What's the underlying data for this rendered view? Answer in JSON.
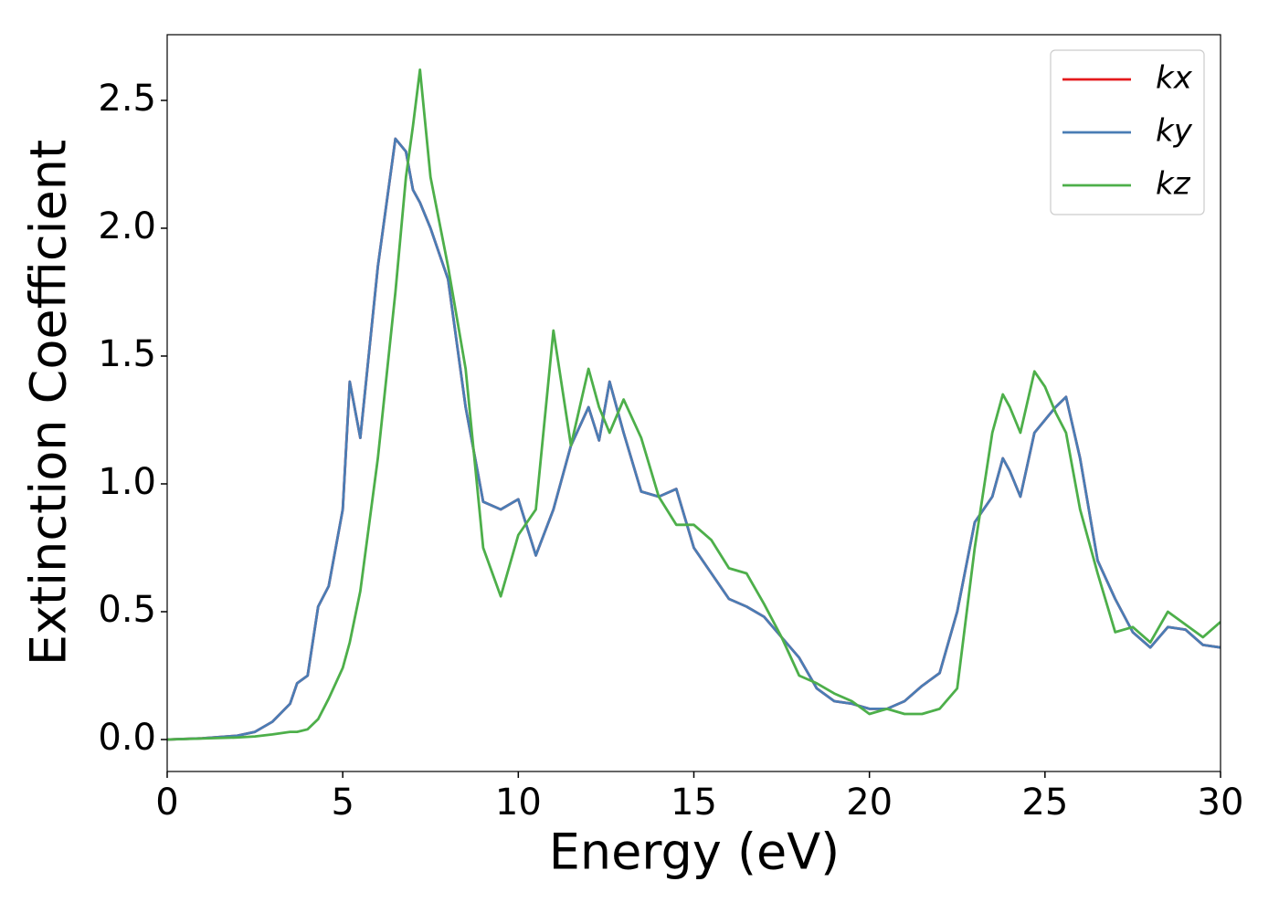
{
  "chart_data": {
    "type": "line",
    "xlabel": "Energy (eV)",
    "ylabel": "Extinction Coefficient",
    "x": [
      0,
      1,
      2,
      2.5,
      3,
      3.5,
      3.7,
      4,
      4.3,
      4.6,
      5,
      5.2,
      5.5,
      6,
      6.5,
      6.8,
      7,
      7.2,
      7.5,
      8,
      8.5,
      9,
      9.5,
      10,
      10.5,
      11,
      11.5,
      12,
      12.3,
      12.6,
      13,
      13.5,
      14,
      14.5,
      15,
      15.5,
      16,
      16.5,
      17,
      17.5,
      18,
      18.5,
      19,
      19.5,
      20,
      20.5,
      21,
      21.5,
      22,
      22.5,
      23,
      23.5,
      23.8,
      24,
      24.3,
      24.7,
      25,
      25.3,
      25.6,
      26,
      26.5,
      27,
      27.5,
      28,
      28.5,
      29,
      29.5,
      30
    ],
    "series": [
      {
        "name": "kx",
        "color": "#e41a1c",
        "values": [
          0,
          0.005,
          0.015,
          0.03,
          0.07,
          0.14,
          0.22,
          0.25,
          0.52,
          0.6,
          0.9,
          1.4,
          1.18,
          1.85,
          2.35,
          2.3,
          2.15,
          2.1,
          2.0,
          1.8,
          1.3,
          0.93,
          0.9,
          0.94,
          0.72,
          0.9,
          1.15,
          1.3,
          1.17,
          1.4,
          1.2,
          0.97,
          0.95,
          0.98,
          0.75,
          0.65,
          0.55,
          0.52,
          0.48,
          0.4,
          0.32,
          0.2,
          0.15,
          0.14,
          0.12,
          0.12,
          0.15,
          0.21,
          0.26,
          0.5,
          0.85,
          0.95,
          1.1,
          1.05,
          0.95,
          1.2,
          1.25,
          1.3,
          1.34,
          1.1,
          0.7,
          0.55,
          0.42,
          0.36,
          0.44,
          0.43,
          0.37,
          0.36
        ]
      },
      {
        "name": "ky",
        "color": "#4a7db5",
        "values": [
          0,
          0.005,
          0.015,
          0.03,
          0.07,
          0.14,
          0.22,
          0.25,
          0.52,
          0.6,
          0.9,
          1.4,
          1.18,
          1.85,
          2.35,
          2.3,
          2.15,
          2.1,
          2.0,
          1.8,
          1.3,
          0.93,
          0.9,
          0.94,
          0.72,
          0.9,
          1.15,
          1.3,
          1.17,
          1.4,
          1.2,
          0.97,
          0.95,
          0.98,
          0.75,
          0.65,
          0.55,
          0.52,
          0.48,
          0.4,
          0.32,
          0.2,
          0.15,
          0.14,
          0.12,
          0.12,
          0.15,
          0.21,
          0.26,
          0.5,
          0.85,
          0.95,
          1.1,
          1.05,
          0.95,
          1.2,
          1.25,
          1.3,
          1.34,
          1.1,
          0.7,
          0.55,
          0.42,
          0.36,
          0.44,
          0.43,
          0.37,
          0.36
        ]
      },
      {
        "name": "kz",
        "color": "#4daf4a",
        "values": [
          0,
          0.004,
          0.008,
          0.012,
          0.02,
          0.03,
          0.03,
          0.04,
          0.08,
          0.16,
          0.28,
          0.38,
          0.58,
          1.1,
          1.75,
          2.2,
          2.4,
          2.62,
          2.2,
          1.85,
          1.45,
          0.75,
          0.56,
          0.8,
          0.9,
          1.6,
          1.15,
          1.45,
          1.3,
          1.2,
          1.33,
          1.18,
          0.95,
          0.84,
          0.84,
          0.78,
          0.67,
          0.65,
          0.53,
          0.4,
          0.25,
          0.22,
          0.18,
          0.15,
          0.1,
          0.12,
          0.1,
          0.1,
          0.12,
          0.2,
          0.75,
          1.2,
          1.35,
          1.3,
          1.2,
          1.44,
          1.38,
          1.28,
          1.2,
          0.9,
          0.65,
          0.42,
          0.44,
          0.38,
          0.5,
          0.45,
          0.4,
          0.46
        ]
      }
    ],
    "xlim": [
      0,
      30
    ],
    "ylim": [
      -0.125,
      2.757
    ],
    "xticks": [
      0,
      5,
      10,
      15,
      20,
      25,
      30
    ],
    "yticks": [
      {
        "value": 0,
        "label": "0.0"
      },
      0.5,
      {
        "value": 1,
        "label": "1.0"
      },
      1.5,
      {
        "value": 2,
        "label": "2.0"
      },
      2.5
    ],
    "legend": "upper right",
    "grid": false
  }
}
